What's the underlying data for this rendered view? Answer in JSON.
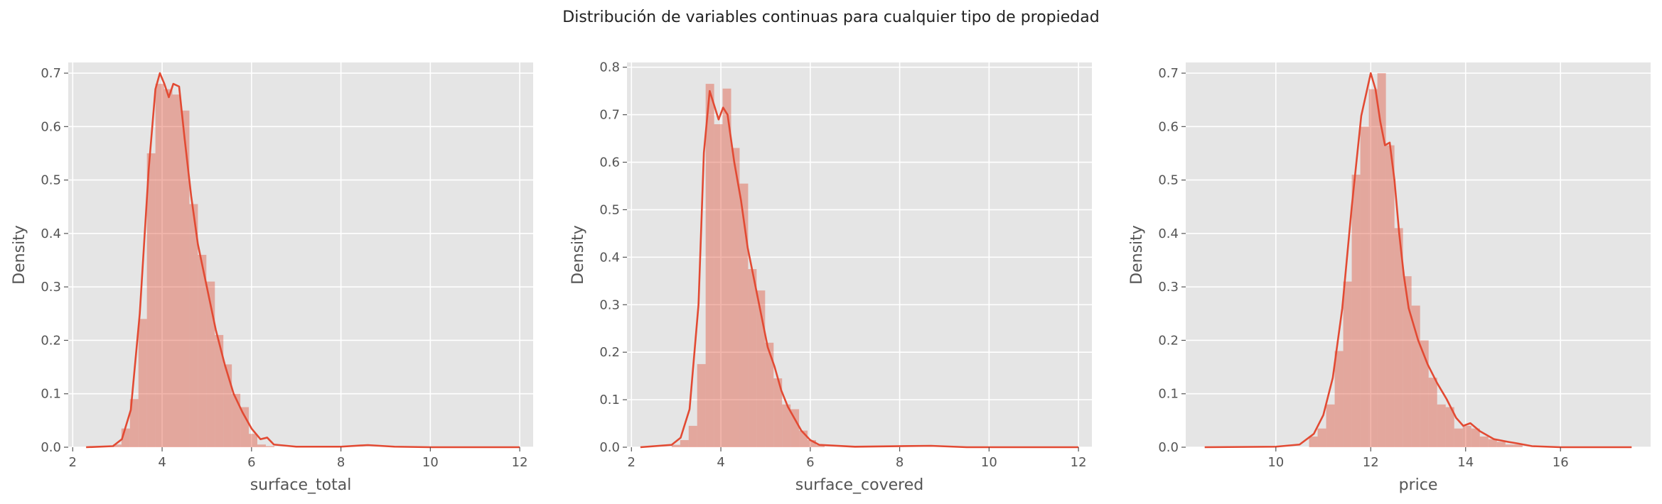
{
  "figure": {
    "suptitle": "Distribución de variables continuas para cualquier tipo de propiedad",
    "style": {
      "axes_background": "#e5e5e5",
      "grid_color": "#ffffff",
      "series_color": "#e24a33",
      "bar_color": "#e24a33",
      "bar_alpha": 0.4
    }
  },
  "chart_data": [
    {
      "type": "bar",
      "title": "",
      "xlabel": "surface_total",
      "ylabel": "Density",
      "xlim": [
        1.9,
        12.3
      ],
      "ylim": [
        0,
        0.72
      ],
      "grid": true,
      "xticks": [
        2,
        4,
        6,
        8,
        10,
        12
      ],
      "xtick_labels": [
        "2",
        "4",
        "6",
        "8",
        "10",
        "12"
      ],
      "yticks": [
        0.0,
        0.1,
        0.2,
        0.3,
        0.4,
        0.5,
        0.6,
        0.7
      ],
      "ytick_labels": [
        "0.0",
        "0.1",
        "0.2",
        "0.3",
        "0.4",
        "0.5",
        "0.6",
        "0.7"
      ],
      "histogram": {
        "bin_width": 0.19,
        "bins": [
          [
            2.9,
            0.005
          ],
          [
            3.09,
            0.035
          ],
          [
            3.28,
            0.09
          ],
          [
            3.47,
            0.24
          ],
          [
            3.66,
            0.55
          ],
          [
            3.85,
            0.68
          ],
          [
            4.04,
            0.67
          ],
          [
            4.23,
            0.66
          ],
          [
            4.42,
            0.63
          ],
          [
            4.61,
            0.455
          ],
          [
            4.8,
            0.36
          ],
          [
            4.99,
            0.31
          ],
          [
            5.18,
            0.21
          ],
          [
            5.37,
            0.155
          ],
          [
            5.56,
            0.1
          ],
          [
            5.75,
            0.075
          ],
          [
            5.94,
            0.025
          ],
          [
            6.13,
            0.005
          ],
          [
            6.32,
            0.002
          ]
        ]
      },
      "kde": [
        [
          2.3,
          0.0
        ],
        [
          2.9,
          0.002
        ],
        [
          3.1,
          0.015
        ],
        [
          3.3,
          0.07
        ],
        [
          3.5,
          0.25
        ],
        [
          3.7,
          0.52
        ],
        [
          3.85,
          0.67
        ],
        [
          3.95,
          0.7
        ],
        [
          4.05,
          0.68
        ],
        [
          4.15,
          0.655
        ],
        [
          4.25,
          0.68
        ],
        [
          4.38,
          0.675
        ],
        [
          4.5,
          0.58
        ],
        [
          4.65,
          0.47
        ],
        [
          4.8,
          0.38
        ],
        [
          5.0,
          0.3
        ],
        [
          5.2,
          0.22
        ],
        [
          5.4,
          0.155
        ],
        [
          5.6,
          0.1
        ],
        [
          5.8,
          0.065
        ],
        [
          6.0,
          0.035
        ],
        [
          6.2,
          0.015
        ],
        [
          6.35,
          0.018
        ],
        [
          6.5,
          0.005
        ],
        [
          7.0,
          0.001
        ],
        [
          8.0,
          0.001
        ],
        [
          8.6,
          0.004
        ],
        [
          9.2,
          0.001
        ],
        [
          10.0,
          0.0
        ],
        [
          12.0,
          0.0
        ]
      ]
    },
    {
      "type": "bar",
      "title": "",
      "xlabel": "surface_covered",
      "ylabel": "Density",
      "xlim": [
        1.9,
        12.3
      ],
      "ylim": [
        0,
        0.81
      ],
      "grid": true,
      "xticks": [
        2,
        4,
        6,
        8,
        10,
        12
      ],
      "xtick_labels": [
        "2",
        "4",
        "6",
        "8",
        "10",
        "12"
      ],
      "yticks": [
        0.0,
        0.1,
        0.2,
        0.3,
        0.4,
        0.5,
        0.6,
        0.7,
        0.8
      ],
      "ytick_labels": [
        "0.0",
        "0.1",
        "0.2",
        "0.3",
        "0.4",
        "0.5",
        "0.6",
        "0.7",
        "0.8"
      ],
      "histogram": {
        "bin_width": 0.19,
        "bins": [
          [
            2.9,
            0.005
          ],
          [
            3.09,
            0.015
          ],
          [
            3.28,
            0.045
          ],
          [
            3.47,
            0.175
          ],
          [
            3.66,
            0.765
          ],
          [
            3.85,
            0.68
          ],
          [
            4.04,
            0.755
          ],
          [
            4.23,
            0.63
          ],
          [
            4.42,
            0.555
          ],
          [
            4.61,
            0.375
          ],
          [
            4.8,
            0.33
          ],
          [
            4.99,
            0.22
          ],
          [
            5.18,
            0.145
          ],
          [
            5.37,
            0.09
          ],
          [
            5.56,
            0.08
          ],
          [
            5.75,
            0.035
          ],
          [
            5.94,
            0.015
          ],
          [
            6.13,
            0.005
          ]
        ]
      },
      "kde": [
        [
          2.2,
          0.0
        ],
        [
          2.9,
          0.005
        ],
        [
          3.1,
          0.02
        ],
        [
          3.3,
          0.08
        ],
        [
          3.5,
          0.3
        ],
        [
          3.62,
          0.62
        ],
        [
          3.75,
          0.75
        ],
        [
          3.85,
          0.72
        ],
        [
          3.95,
          0.69
        ],
        [
          4.05,
          0.715
        ],
        [
          4.15,
          0.7
        ],
        [
          4.3,
          0.6
        ],
        [
          4.45,
          0.52
        ],
        [
          4.6,
          0.42
        ],
        [
          4.75,
          0.35
        ],
        [
          4.9,
          0.28
        ],
        [
          5.05,
          0.21
        ],
        [
          5.2,
          0.17
        ],
        [
          5.35,
          0.12
        ],
        [
          5.5,
          0.085
        ],
        [
          5.65,
          0.06
        ],
        [
          5.8,
          0.035
        ],
        [
          6.0,
          0.015
        ],
        [
          6.2,
          0.005
        ],
        [
          7.0,
          0.001
        ],
        [
          8.7,
          0.003
        ],
        [
          9.5,
          0.0
        ],
        [
          12.0,
          0.0
        ]
      ]
    },
    {
      "type": "bar",
      "title": "",
      "xlabel": "price",
      "ylabel": "Density",
      "xlim": [
        8.1,
        17.9
      ],
      "ylim": [
        0,
        0.72
      ],
      "grid": true,
      "xticks": [
        10,
        12,
        14,
        16
      ],
      "xtick_labels": [
        "10",
        "12",
        "14",
        "16"
      ],
      "yticks": [
        0.0,
        0.1,
        0.2,
        0.3,
        0.4,
        0.5,
        0.6,
        0.7
      ],
      "ytick_labels": [
        "0.0",
        "0.1",
        "0.2",
        "0.3",
        "0.4",
        "0.5",
        "0.6",
        "0.7"
      ],
      "histogram": {
        "bin_width": 0.18,
        "bins": [
          [
            10.7,
            0.02
          ],
          [
            10.88,
            0.035
          ],
          [
            11.06,
            0.08
          ],
          [
            11.24,
            0.18
          ],
          [
            11.42,
            0.31
          ],
          [
            11.6,
            0.51
          ],
          [
            11.78,
            0.6
          ],
          [
            11.96,
            0.67
          ],
          [
            12.14,
            0.7
          ],
          [
            12.32,
            0.565
          ],
          [
            12.5,
            0.41
          ],
          [
            12.68,
            0.32
          ],
          [
            12.86,
            0.265
          ],
          [
            13.04,
            0.2
          ],
          [
            13.22,
            0.13
          ],
          [
            13.4,
            0.08
          ],
          [
            13.58,
            0.075
          ],
          [
            13.76,
            0.035
          ],
          [
            13.94,
            0.04
          ],
          [
            14.12,
            0.035
          ],
          [
            14.3,
            0.02
          ],
          [
            14.48,
            0.015
          ],
          [
            14.66,
            0.01
          ],
          [
            14.84,
            0.005
          ],
          [
            15.02,
            0.005
          ]
        ]
      },
      "kde": [
        [
          8.5,
          0.0
        ],
        [
          10.0,
          0.001
        ],
        [
          10.5,
          0.005
        ],
        [
          10.8,
          0.025
        ],
        [
          11.0,
          0.06
        ],
        [
          11.2,
          0.13
        ],
        [
          11.4,
          0.26
        ],
        [
          11.6,
          0.45
        ],
        [
          11.8,
          0.62
        ],
        [
          12.0,
          0.7
        ],
        [
          12.1,
          0.67
        ],
        [
          12.2,
          0.61
        ],
        [
          12.3,
          0.565
        ],
        [
          12.4,
          0.57
        ],
        [
          12.5,
          0.5
        ],
        [
          12.6,
          0.4
        ],
        [
          12.7,
          0.32
        ],
        [
          12.8,
          0.26
        ],
        [
          13.0,
          0.2
        ],
        [
          13.2,
          0.155
        ],
        [
          13.4,
          0.12
        ],
        [
          13.6,
          0.09
        ],
        [
          13.8,
          0.055
        ],
        [
          13.95,
          0.04
        ],
        [
          14.1,
          0.045
        ],
        [
          14.3,
          0.03
        ],
        [
          14.6,
          0.015
        ],
        [
          14.9,
          0.01
        ],
        [
          15.1,
          0.007
        ],
        [
          15.4,
          0.002
        ],
        [
          16.0,
          0.0
        ],
        [
          17.5,
          0.0
        ]
      ]
    }
  ]
}
